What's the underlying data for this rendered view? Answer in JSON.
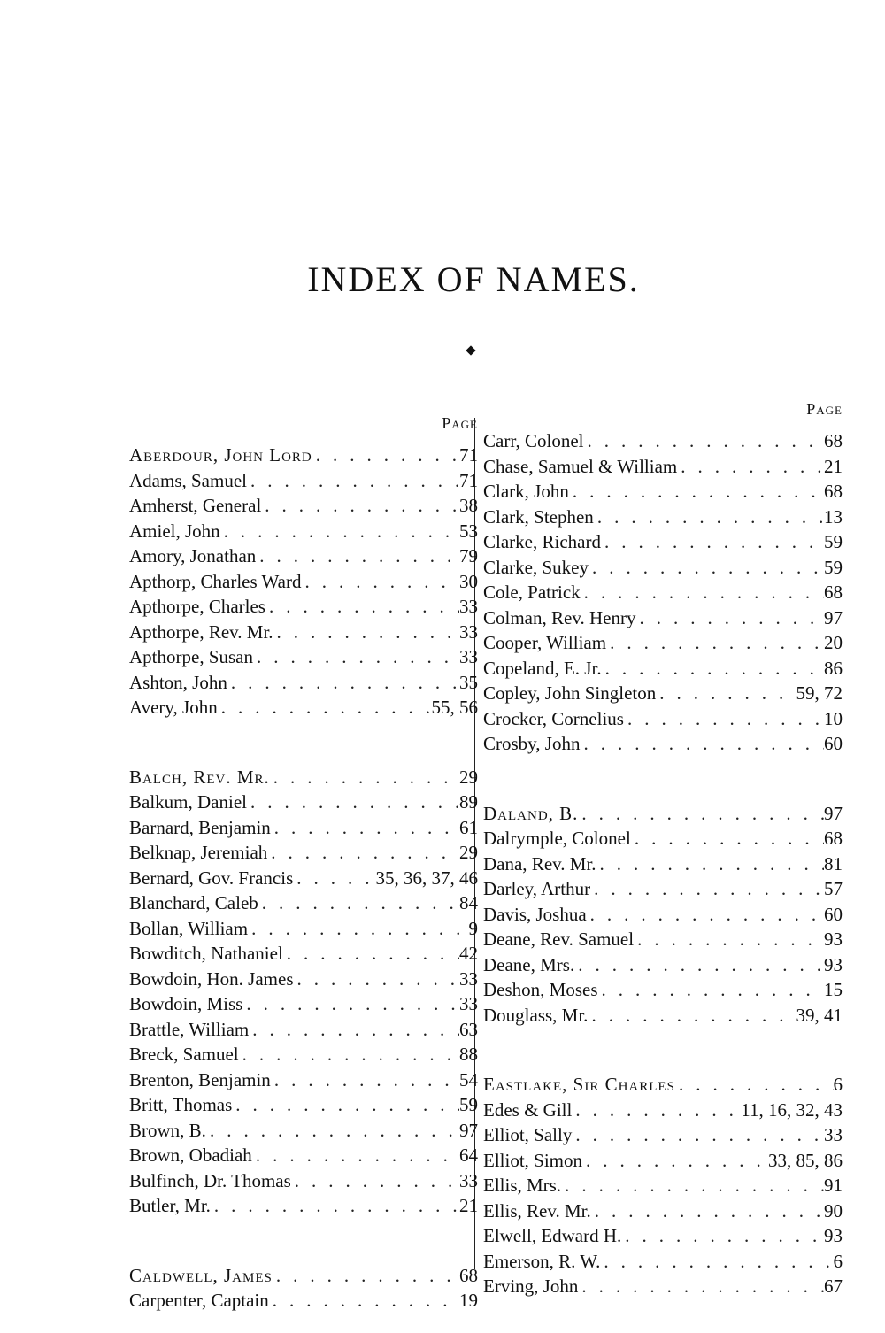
{
  "title": "INDEX OF NAMES.",
  "page_heading": "Page",
  "left_column": [
    {
      "name": "Aberdour, John Lord",
      "pages": "71",
      "lead": true
    },
    {
      "name": "Adams, Samuel",
      "pages": "71"
    },
    {
      "name": "Amherst, General",
      "pages": "38"
    },
    {
      "name": "Amiel, John",
      "pages": "53"
    },
    {
      "name": "Amory, Jonathan",
      "pages": "79"
    },
    {
      "name": "Apthorp, Charles Ward",
      "pages": "30"
    },
    {
      "name": "Apthorpe, Charles",
      "pages": "33"
    },
    {
      "name": "Apthorpe, Rev. Mr.",
      "pages": "33"
    },
    {
      "name": "Apthorpe, Susan",
      "pages": "33"
    },
    {
      "name": "Ashton, John",
      "pages": "35"
    },
    {
      "name": "Avery, John",
      "pages": "55, 56"
    },
    {
      "spacer": true
    },
    {
      "name": "Balch, Rev. Mr.",
      "pages": "29",
      "lead": true
    },
    {
      "name": "Balkum, Daniel",
      "pages": "89"
    },
    {
      "name": "Barnard, Benjamin",
      "pages": "61"
    },
    {
      "name": "Belknap, Jeremiah",
      "pages": "29"
    },
    {
      "name": "Bernard, Gov. Francis",
      "pages": "35, 36, 37, 46"
    },
    {
      "name": "Blanchard, Caleb",
      "pages": "84"
    },
    {
      "name": "Bollan, William",
      "pages": "9"
    },
    {
      "name": "Bowditch, Nathaniel",
      "pages": "42"
    },
    {
      "name": "Bowdoin, Hon. James",
      "pages": "33"
    },
    {
      "name": "Bowdoin, Miss",
      "pages": "33"
    },
    {
      "name": "Brattle, William",
      "pages": "63"
    },
    {
      "name": "Breck, Samuel",
      "pages": "88"
    },
    {
      "name": "Brenton, Benjamin",
      "pages": "54"
    },
    {
      "name": "Britt, Thomas",
      "pages": "59"
    },
    {
      "name": "Brown, B.",
      "pages": "97"
    },
    {
      "name": "Brown, Obadiah",
      "pages": "64"
    },
    {
      "name": "Bulfinch, Dr. Thomas",
      "pages": "33"
    },
    {
      "name": "Butler, Mr.",
      "pages": "21"
    },
    {
      "spacer": true
    },
    {
      "name": "Caldwell, James",
      "pages": "68",
      "lead": true
    },
    {
      "name": "Carpenter, Captain",
      "pages": "19"
    }
  ],
  "right_column": [
    {
      "name": "Carr, Colonel",
      "pages": "68"
    },
    {
      "name": "Chase, Samuel & William",
      "pages": "21"
    },
    {
      "name": "Clark, John",
      "pages": "68"
    },
    {
      "name": "Clark, Stephen",
      "pages": "13"
    },
    {
      "name": "Clarke, Richard",
      "pages": "59"
    },
    {
      "name": "Clarke, Sukey",
      "pages": "59"
    },
    {
      "name": "Cole, Patrick",
      "pages": "68"
    },
    {
      "name": "Colman, Rev. Henry",
      "pages": "97"
    },
    {
      "name": "Cooper, William",
      "pages": "20"
    },
    {
      "name": "Copeland, E. Jr.",
      "pages": "86"
    },
    {
      "name": "Copley, John Singleton",
      "pages": "59, 72"
    },
    {
      "name": "Crocker, Cornelius",
      "pages": "10"
    },
    {
      "name": "Crosby, John",
      "pages": "60"
    },
    {
      "spacer": true
    },
    {
      "name": "Daland, B.",
      "pages": "97",
      "lead": true
    },
    {
      "name": "Dalrymple, Colonel",
      "pages": "68"
    },
    {
      "name": "Dana, Rev. Mr.",
      "pages": "81"
    },
    {
      "name": "Darley, Arthur",
      "pages": "57"
    },
    {
      "name": "Davis, Joshua",
      "pages": "60"
    },
    {
      "name": "Deane, Rev. Samuel",
      "pages": "93"
    },
    {
      "name": "Deane, Mrs.",
      "pages": "93"
    },
    {
      "name": "Deshon, Moses",
      "pages": "15"
    },
    {
      "name": "Douglass, Mr.",
      "pages": "39, 41"
    },
    {
      "spacer": true
    },
    {
      "name": "Eastlake, Sir Charles",
      "pages": "6",
      "lead": true
    },
    {
      "name": "Edes & Gill",
      "pages": "11, 16, 32, 43"
    },
    {
      "name": "Elliot, Sally",
      "pages": "33"
    },
    {
      "name": "Elliot, Simon",
      "pages": "33, 85, 86"
    },
    {
      "name": "Ellis, Mrs.",
      "pages": "91"
    },
    {
      "name": "Ellis, Rev. Mr.",
      "pages": "90"
    },
    {
      "name": "Elwell, Edward H.",
      "pages": "93"
    },
    {
      "name": "Emerson, R. W.",
      "pages": "6"
    },
    {
      "name": "Erving, John",
      "pages": "67"
    }
  ]
}
